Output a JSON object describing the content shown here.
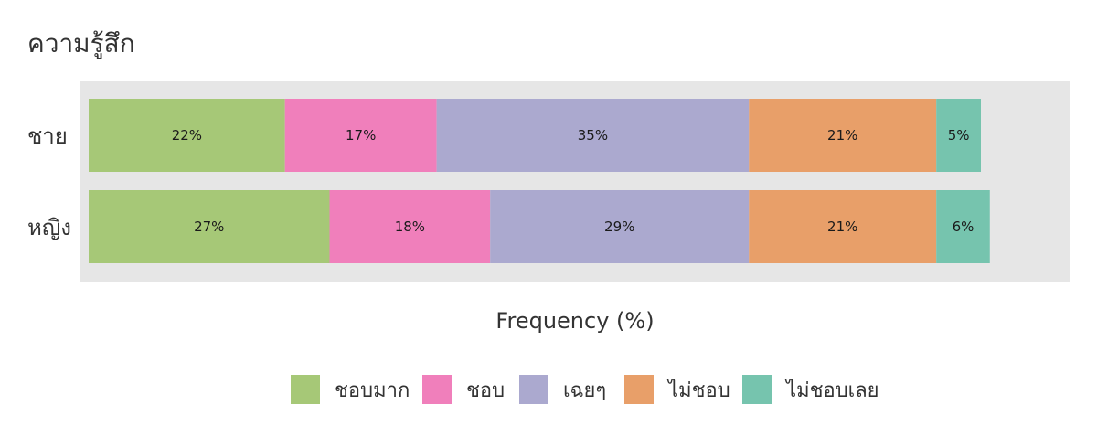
{
  "chart_data": {
    "type": "bar",
    "orientation": "horizontal",
    "stacked": true,
    "title": "ความรู้สึก",
    "xlabel": "Frequency (%)",
    "ylabel": "",
    "xlim": [
      0,
      100
    ],
    "grid": false,
    "legend_position": "bottom",
    "categories": [
      "ชาย",
      "หญิง"
    ],
    "series": [
      {
        "name": "ชอบมาก",
        "color": "#a6c877",
        "values": [
          22,
          27
        ]
      },
      {
        "name": "ชอบ",
        "color": "#f07fbb",
        "values": [
          17,
          18
        ]
      },
      {
        "name": "เฉยๆ",
        "color": "#aba9cf",
        "values": [
          35,
          29
        ]
      },
      {
        "name": "ไม่ชอบ",
        "color": "#e89f69",
        "values": [
          21,
          21
        ]
      },
      {
        "name": "ไม่ชอบเลย",
        "color": "#76c4ae",
        "values": [
          5,
          6
        ]
      }
    ],
    "data_labels": [
      [
        "22%",
        "17%",
        "35%",
        "21%",
        "5%"
      ],
      [
        "27%",
        "18%",
        "29%",
        "21%",
        "6%"
      ]
    ]
  }
}
